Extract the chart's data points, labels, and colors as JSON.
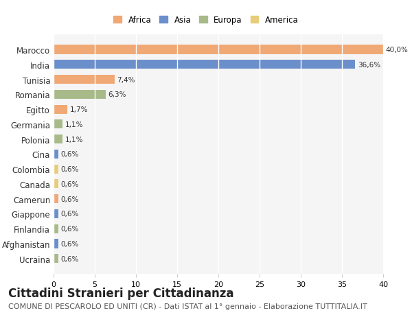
{
  "countries": [
    "Marocco",
    "India",
    "Tunisia",
    "Romania",
    "Egitto",
    "Germania",
    "Polonia",
    "Cina",
    "Colombia",
    "Canada",
    "Camerun",
    "Giappone",
    "Finlandia",
    "Afghanistan",
    "Ucraina"
  ],
  "values": [
    40.0,
    36.6,
    7.4,
    6.3,
    1.7,
    1.1,
    1.1,
    0.6,
    0.6,
    0.6,
    0.6,
    0.6,
    0.6,
    0.6,
    0.6
  ],
  "labels": [
    "40,0%",
    "36,6%",
    "7,4%",
    "6,3%",
    "1,7%",
    "1,1%",
    "1,1%",
    "0,6%",
    "0,6%",
    "0,6%",
    "0,6%",
    "0,6%",
    "0,6%",
    "0,6%",
    "0,6%"
  ],
  "continents": [
    "Africa",
    "Asia",
    "Africa",
    "Europa",
    "Africa",
    "Europa",
    "Europa",
    "Asia",
    "America",
    "America",
    "Africa",
    "Asia",
    "Europa",
    "Asia",
    "Europa"
  ],
  "continent_colors": {
    "Africa": "#F0A875",
    "Asia": "#6B8FCA",
    "Europa": "#A8BA8A",
    "America": "#E8CC7A"
  },
  "legend_order": [
    "Africa",
    "Asia",
    "Europa",
    "America"
  ],
  "xlim": [
    0,
    40
  ],
  "xticks": [
    0,
    5,
    10,
    15,
    20,
    25,
    30,
    35,
    40
  ],
  "background_color": "#FFFFFF",
  "plot_bg_color": "#F5F5F5",
  "grid_color": "#FFFFFF",
  "title": "Cittadini Stranieri per Cittadinanza",
  "subtitle": "COMUNE DI PESCAROLO ED UNITI (CR) - Dati ISTAT al 1° gennaio - Elaborazione TUTTITALIA.IT",
  "title_fontsize": 12,
  "subtitle_fontsize": 8,
  "bar_height": 0.6
}
